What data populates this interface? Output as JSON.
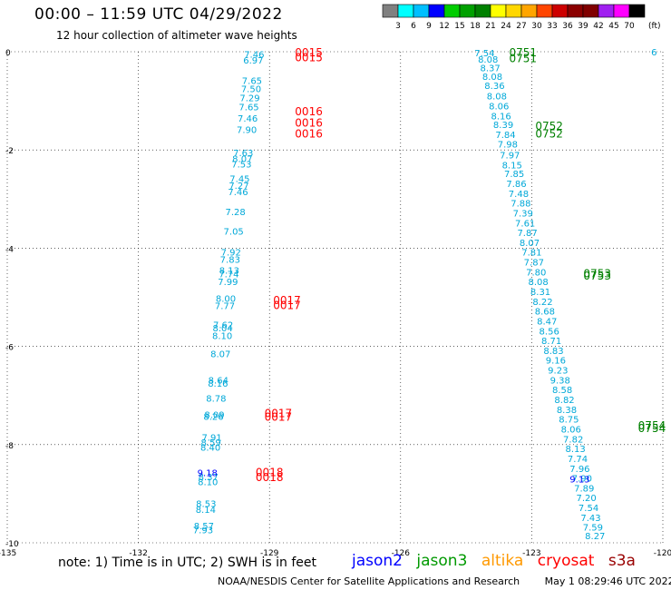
{
  "header": {
    "title": "00:00 – 11:59 UTC 04/29/2022",
    "subtitle": "12 hour collection of altimeter wave heights"
  },
  "colorbar": {
    "unit": "(ft)",
    "colors": [
      "#808080",
      "#00ffff",
      "#00bfff",
      "#0000ff",
      "#00cd00",
      "#00a000",
      "#008000",
      "#ffff00",
      "#ffd700",
      "#ffa500",
      "#ff4500",
      "#cd0000",
      "#8b0000",
      "#800000",
      "#a020f0",
      "#ff00ff",
      "#000000"
    ],
    "labels": [
      "3",
      "6",
      "9",
      "12",
      "15",
      "18",
      "21",
      "24",
      "27",
      "30",
      "33",
      "36",
      "39",
      "42",
      "45",
      "70"
    ]
  },
  "chart_data": {
    "type": "scatter",
    "title": "00:00 – 11:59 UTC 04/29/2022",
    "subtitle": "12 hour collection of altimeter wave heights",
    "xlim": [
      -135,
      -120
    ],
    "ylim": [
      -10,
      0
    ],
    "x_ticks": [
      "-135",
      "-132",
      "-129",
      "-126",
      "-123",
      "-120"
    ],
    "y_ticks": [
      "0",
      "-2",
      "-4",
      "-6",
      "-8",
      "-10"
    ],
    "grid": true,
    "series": [
      {
        "name": "jason3",
        "color": "#00a8d8",
        "points": [
          {
            "x": -129.35,
            "y": -0.05,
            "v": "7.46"
          },
          {
            "x": -129.37,
            "y": -0.17,
            "v": "6.97"
          },
          {
            "x": -129.4,
            "y": -0.58,
            "v": "7.65"
          },
          {
            "x": -129.42,
            "y": -0.75,
            "v": "7.50"
          },
          {
            "x": -129.45,
            "y": -0.93,
            "v": "7.29"
          },
          {
            "x": -129.47,
            "y": -1.12,
            "v": "7.65"
          },
          {
            "x": -129.5,
            "y": -1.35,
            "v": "7.46"
          },
          {
            "x": -129.52,
            "y": -1.58,
            "v": "7.90"
          },
          {
            "x": -129.6,
            "y": -2.05,
            "v": "7.63"
          },
          {
            "x": -129.62,
            "y": -2.17,
            "v": "8.07"
          },
          {
            "x": -129.64,
            "y": -2.28,
            "v": "7.53"
          },
          {
            "x": -129.68,
            "y": -2.58,
            "v": "7.45"
          },
          {
            "x": -129.7,
            "y": -2.72,
            "v": "7.27"
          },
          {
            "x": -129.72,
            "y": -2.85,
            "v": "7.46"
          },
          {
            "x": -129.78,
            "y": -3.25,
            "v": "7.28"
          },
          {
            "x": -129.82,
            "y": -3.65,
            "v": "7.05"
          },
          {
            "x": -129.88,
            "y": -4.08,
            "v": "7.92"
          },
          {
            "x": -129.9,
            "y": -4.22,
            "v": "7.83"
          },
          {
            "x": -129.92,
            "y": -4.45,
            "v": "8.13"
          },
          {
            "x": -129.93,
            "y": -4.52,
            "v": "7.74"
          },
          {
            "x": -129.95,
            "y": -4.68,
            "v": "7.99"
          },
          {
            "x": -130.0,
            "y": -5.02,
            "v": "8.00"
          },
          {
            "x": -130.02,
            "y": -5.17,
            "v": "7.77"
          },
          {
            "x": -130.06,
            "y": -5.55,
            "v": "7.62"
          },
          {
            "x": -130.07,
            "y": -5.62,
            "v": "8.04"
          },
          {
            "x": -130.08,
            "y": -5.78,
            "v": "8.10"
          },
          {
            "x": -130.12,
            "y": -6.15,
            "v": "8.07"
          },
          {
            "x": -130.17,
            "y": -6.68,
            "v": "8.64"
          },
          {
            "x": -130.18,
            "y": -6.75,
            "v": "8.16"
          },
          {
            "x": -130.22,
            "y": -7.05,
            "v": "8.78"
          },
          {
            "x": -130.26,
            "y": -7.38,
            "v": "8.09"
          },
          {
            "x": -130.28,
            "y": -7.42,
            "v": "8.26"
          },
          {
            "x": -130.32,
            "y": -7.85,
            "v": "7.91"
          },
          {
            "x": -130.34,
            "y": -7.95,
            "v": "8.59"
          },
          {
            "x": -130.35,
            "y": -8.05,
            "v": "8.40"
          },
          {
            "x": -130.4,
            "y": -8.65,
            "v": "8.37"
          },
          {
            "x": -130.41,
            "y": -8.75,
            "v": "8.10"
          },
          {
            "x": -130.45,
            "y": -9.2,
            "v": "8.53"
          },
          {
            "x": -130.46,
            "y": -9.32,
            "v": "8.14"
          },
          {
            "x": -130.5,
            "y": -9.65,
            "v": "8.57"
          },
          {
            "x": -130.52,
            "y": -9.73,
            "v": "7.93"
          },
          {
            "x": -124.08,
            "y": -0.02,
            "v": "7.54"
          },
          {
            "x": -124.0,
            "y": -0.15,
            "v": "8.08"
          },
          {
            "x": -123.95,
            "y": -0.32,
            "v": "8.37"
          },
          {
            "x": -123.9,
            "y": -0.5,
            "v": "8.08"
          },
          {
            "x": -123.85,
            "y": -0.68,
            "v": "8.36"
          },
          {
            "x": -123.8,
            "y": -0.9,
            "v": "8.08"
          },
          {
            "x": -123.75,
            "y": -1.1,
            "v": "8.06"
          },
          {
            "x": -123.7,
            "y": -1.3,
            "v": "8.16"
          },
          {
            "x": -123.65,
            "y": -1.48,
            "v": "8.39"
          },
          {
            "x": -123.6,
            "y": -1.68,
            "v": "7.84"
          },
          {
            "x": -123.55,
            "y": -1.88,
            "v": "7.98"
          },
          {
            "x": -123.5,
            "y": -2.1,
            "v": "7.97"
          },
          {
            "x": -123.45,
            "y": -2.3,
            "v": "8.15"
          },
          {
            "x": -123.4,
            "y": -2.48,
            "v": "7.85"
          },
          {
            "x": -123.35,
            "y": -2.68,
            "v": "7.86"
          },
          {
            "x": -123.3,
            "y": -2.88,
            "v": "7.48"
          },
          {
            "x": -123.25,
            "y": -3.08,
            "v": "7.88"
          },
          {
            "x": -123.2,
            "y": -3.28,
            "v": "7.39"
          },
          {
            "x": -123.15,
            "y": -3.48,
            "v": "7.61"
          },
          {
            "x": -123.1,
            "y": -3.68,
            "v": "7.87"
          },
          {
            "x": -123.05,
            "y": -3.88,
            "v": "8.07"
          },
          {
            "x": -123.0,
            "y": -4.08,
            "v": "7.81"
          },
          {
            "x": -122.95,
            "y": -4.28,
            "v": "7.87"
          },
          {
            "x": -122.9,
            "y": -4.48,
            "v": "7.80"
          },
          {
            "x": -122.85,
            "y": -4.68,
            "v": "8.08"
          },
          {
            "x": -122.8,
            "y": -4.88,
            "v": "8.31"
          },
          {
            "x": -122.75,
            "y": -5.08,
            "v": "8.22"
          },
          {
            "x": -122.7,
            "y": -5.28,
            "v": "8.68"
          },
          {
            "x": -122.65,
            "y": -5.48,
            "v": "8.47"
          },
          {
            "x": -122.6,
            "y": -5.68,
            "v": "8.56"
          },
          {
            "x": -122.55,
            "y": -5.88,
            "v": "8.71"
          },
          {
            "x": -122.5,
            "y": -6.08,
            "v": "8.83"
          },
          {
            "x": -122.45,
            "y": -6.28,
            "v": "9.16"
          },
          {
            "x": -122.4,
            "y": -6.48,
            "v": "9.23"
          },
          {
            "x": -122.35,
            "y": -6.68,
            "v": "9.38"
          },
          {
            "x": -122.3,
            "y": -6.88,
            "v": "8.58"
          },
          {
            "x": -122.25,
            "y": -7.08,
            "v": "8.82"
          },
          {
            "x": -122.2,
            "y": -7.28,
            "v": "8.38"
          },
          {
            "x": -122.15,
            "y": -7.48,
            "v": "8.75"
          },
          {
            "x": -122.1,
            "y": -7.68,
            "v": "8.06"
          },
          {
            "x": -122.05,
            "y": -7.88,
            "v": "7.82"
          },
          {
            "x": -122.0,
            "y": -8.08,
            "v": "8.13"
          },
          {
            "x": -121.95,
            "y": -8.28,
            "v": "7.74"
          },
          {
            "x": -121.9,
            "y": -8.48,
            "v": "7.96"
          },
          {
            "x": -121.85,
            "y": -8.68,
            "v": "7.90"
          },
          {
            "x": -121.8,
            "y": -8.88,
            "v": "7.89"
          },
          {
            "x": -121.75,
            "y": -9.08,
            "v": "7.20"
          },
          {
            "x": -121.7,
            "y": -9.28,
            "v": "7.54"
          },
          {
            "x": -121.65,
            "y": -9.48,
            "v": "7.43"
          },
          {
            "x": -121.6,
            "y": -9.68,
            "v": "7.59"
          },
          {
            "x": -121.55,
            "y": -9.85,
            "v": "8.27"
          },
          {
            "x": -120.2,
            "y": 0.0,
            "v": "6"
          }
        ]
      },
      {
        "name": "jason2",
        "color": "#0000ff",
        "points": [
          {
            "x": -130.42,
            "y": -8.57,
            "v": "9.18"
          },
          {
            "x": -121.9,
            "y": -8.7,
            "v": "9.13"
          }
        ]
      }
    ],
    "time_labels": [
      {
        "x": -128.1,
        "y": 0.0,
        "t": "0015",
        "c": "#ff0000"
      },
      {
        "x": -128.1,
        "y": -0.1,
        "t": "0015",
        "c": "#ff0000"
      },
      {
        "x": -123.2,
        "y": 0.0,
        "t": "0751",
        "c": "#008000"
      },
      {
        "x": -123.2,
        "y": -0.12,
        "t": "0751",
        "c": "#008000"
      },
      {
        "x": -128.1,
        "y": -1.2,
        "t": "0016",
        "c": "#ff0000"
      },
      {
        "x": -128.1,
        "y": -1.43,
        "t": "0016",
        "c": "#ff0000"
      },
      {
        "x": -128.1,
        "y": -1.65,
        "t": "0016",
        "c": "#ff0000"
      },
      {
        "x": -122.6,
        "y": -1.5,
        "t": "0752",
        "c": "#008000"
      },
      {
        "x": -122.6,
        "y": -1.65,
        "t": "0752",
        "c": "#008000"
      },
      {
        "x": -121.5,
        "y": -4.5,
        "t": "0753",
        "c": "#008000"
      },
      {
        "x": -121.5,
        "y": -4.55,
        "t": "0753",
        "c": "#008000"
      },
      {
        "x": -128.6,
        "y": -5.05,
        "t": "0017",
        "c": "#ff0000"
      },
      {
        "x": -128.6,
        "y": -5.15,
        "t": "0017",
        "c": "#ff0000"
      },
      {
        "x": -128.8,
        "y": -7.35,
        "t": "0017",
        "c": "#ff0000"
      },
      {
        "x": -128.8,
        "y": -7.42,
        "t": "0017",
        "c": "#ff0000"
      },
      {
        "x": -120.25,
        "y": -7.6,
        "t": "0754",
        "c": "#008000"
      },
      {
        "x": -120.25,
        "y": -7.65,
        "t": "0754",
        "c": "#008000"
      },
      {
        "x": -129.0,
        "y": -8.55,
        "t": "0018",
        "c": "#ff0000"
      },
      {
        "x": -129.0,
        "y": -8.65,
        "t": "0018",
        "c": "#ff0000"
      }
    ]
  },
  "note": "note: 1) Time is in UTC; 2) SWH is in feet",
  "legend": [
    {
      "label": "jason2",
      "color": "#0000ff"
    },
    {
      "label": "jason3",
      "color": "#009900"
    },
    {
      "label": "altika",
      "color": "#ff9900"
    },
    {
      "label": "cryosat",
      "color": "#ff0000"
    },
    {
      "label": "s3a",
      "color": "#990000"
    }
  ],
  "footer": {
    "credit": "NOAA/NESDIS Center for Satellite Applications and Research",
    "date": "May  1 08:29:46 UTC 2022"
  }
}
